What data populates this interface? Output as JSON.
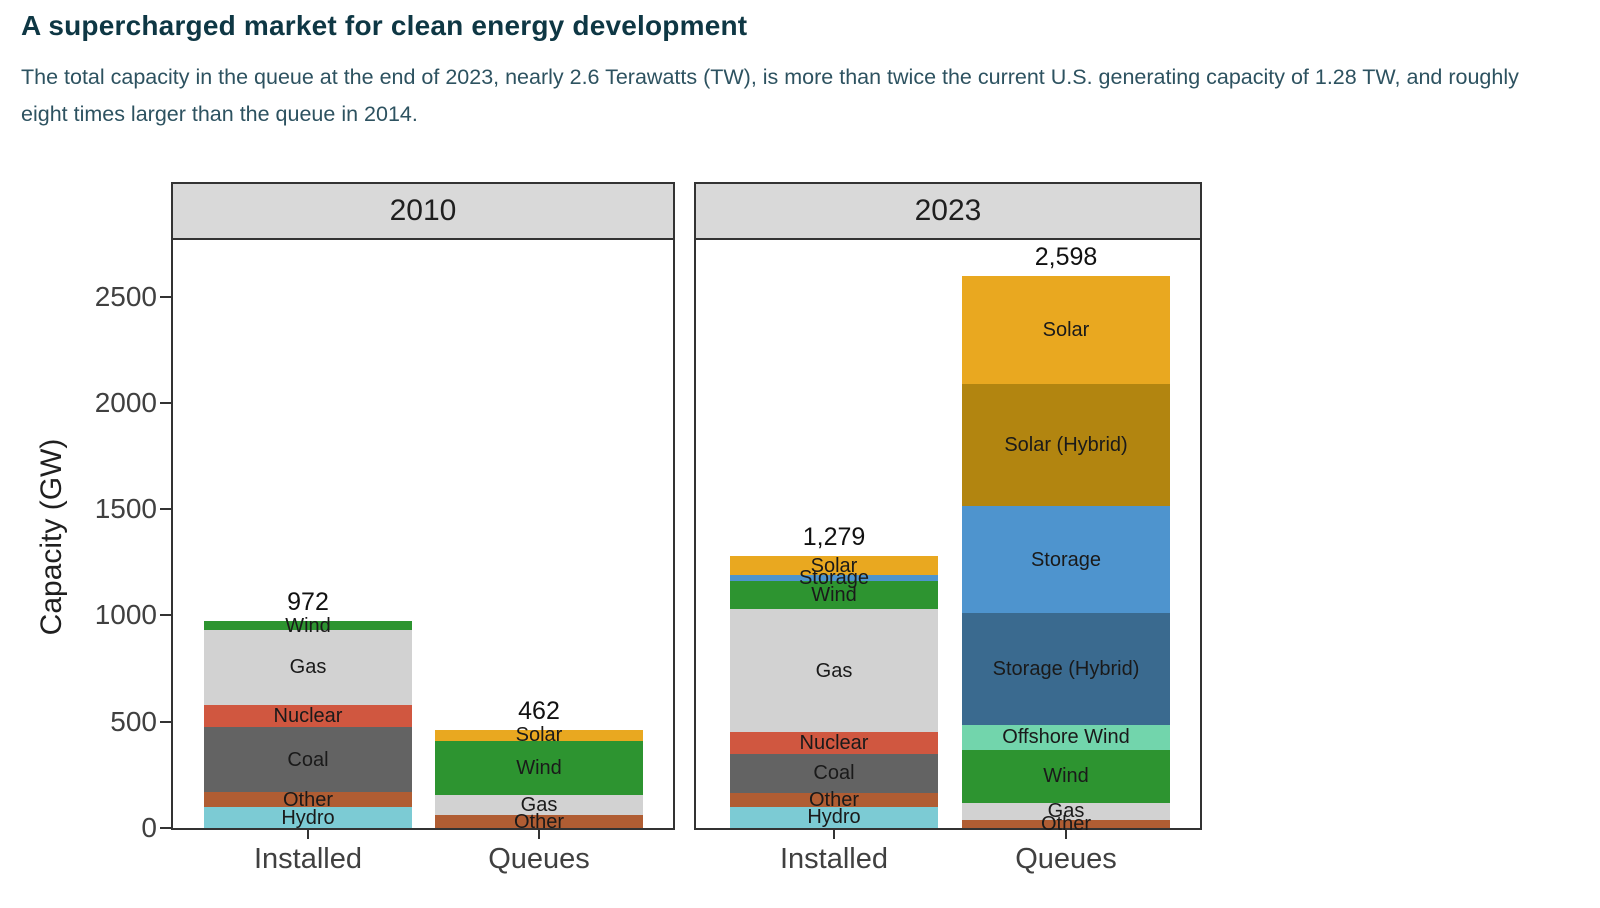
{
  "header": {
    "title": "A supercharged market for clean energy development",
    "subtitle": "The total capacity in the queue at the end of 2023, nearly 2.6 Terawatts (TW), is more than twice the current U.S. generating capacity of 1.28 TW, and roughly eight times larger than the queue in 2014."
  },
  "colors": {
    "title_text": "#0e3744",
    "subtitle_text": "#2d5260",
    "strip_bg": "#d9d9d9",
    "panel_border": "#333333",
    "axis_text": "#404040",
    "segment_label_text": "#1a1a1a"
  },
  "chart_data": {
    "type": "bar",
    "stacked": true,
    "ylabel": "Capacity (GW)",
    "yticks": [
      0,
      500,
      1000,
      1500,
      2000,
      2500
    ],
    "ylim": [
      0,
      2766
    ],
    "grid": false,
    "categories": [
      "Installed",
      "Queues"
    ],
    "panels": [
      {
        "title": "2010",
        "bars": [
          {
            "category": "Installed",
            "total": 972,
            "total_label": "972",
            "segments": [
              {
                "name": "Hydro",
                "value": 98,
                "color": "#7CCBD4"
              },
              {
                "name": "Other",
                "value": 70,
                "color": "#B05D33"
              },
              {
                "name": "Coal",
                "value": 308,
                "color": "#636363"
              },
              {
                "name": "Nuclear",
                "value": 104,
                "color": "#D05740"
              },
              {
                "name": "Gas",
                "value": 352,
                "color": "#D2D2D2"
              },
              {
                "name": "Wind",
                "value": 40,
                "color": "#2D9430"
              }
            ]
          },
          {
            "category": "Queues",
            "total": 462,
            "total_label": "462",
            "segments": [
              {
                "name": "Other",
                "value": 60,
                "color": "#B05D33"
              },
              {
                "name": "Gas",
                "value": 97,
                "color": "#D2D2D2"
              },
              {
                "name": "Wind",
                "value": 253,
                "color": "#2D9430"
              },
              {
                "name": "Solar",
                "value": 52,
                "color": "#E9A820"
              }
            ]
          }
        ]
      },
      {
        "title": "2023",
        "bars": [
          {
            "category": "Installed",
            "total": 1279,
            "total_label": "1,279",
            "segments": [
              {
                "name": "Hydro",
                "value": 99,
                "color": "#7CCBD4"
              },
              {
                "name": "Other",
                "value": 64,
                "color": "#B05D33"
              },
              {
                "name": "Coal",
                "value": 187,
                "color": "#636363"
              },
              {
                "name": "Nuclear",
                "value": 102,
                "color": "#D05740"
              },
              {
                "name": "Gas",
                "value": 576,
                "color": "#D2D2D2"
              },
              {
                "name": "Wind",
                "value": 135,
                "color": "#2D9430"
              },
              {
                "name": "Storage",
                "value": 25,
                "color": "#4E94CE"
              },
              {
                "name": "Solar",
                "value": 91,
                "color": "#E9A820"
              }
            ]
          },
          {
            "category": "Queues",
            "total": 2598,
            "total_label": "2,598",
            "segments": [
              {
                "name": "Other",
                "value": 40,
                "color": "#B05D33"
              },
              {
                "name": "Gas",
                "value": 78,
                "color": "#D2D2D2"
              },
              {
                "name": "Wind",
                "value": 250,
                "color": "#2D9430"
              },
              {
                "name": "Offshore Wind",
                "value": 117,
                "color": "#72D5AC"
              },
              {
                "name": "Storage (Hybrid)",
                "value": 525,
                "color": "#3A6A8F"
              },
              {
                "name": "Storage",
                "value": 506,
                "color": "#4E94CE"
              },
              {
                "name": "Solar (Hybrid)",
                "value": 572,
                "color": "#B28510"
              },
              {
                "name": "Solar",
                "value": 510,
                "color": "#E9A820"
              }
            ]
          }
        ]
      }
    ]
  }
}
